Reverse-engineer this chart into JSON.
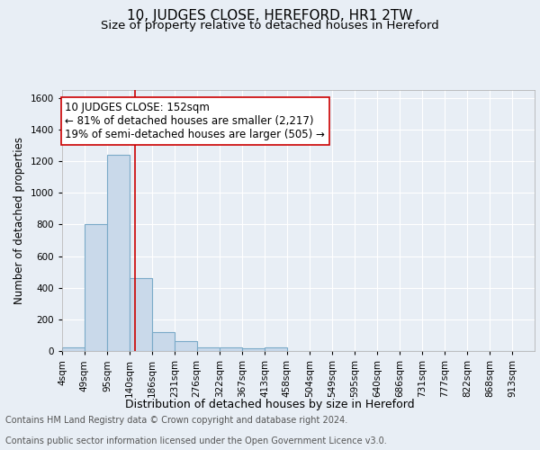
{
  "title": "10, JUDGES CLOSE, HEREFORD, HR1 2TW",
  "subtitle": "Size of property relative to detached houses in Hereford",
  "xlabel": "Distribution of detached houses by size in Hereford",
  "ylabel": "Number of detached properties",
  "footer_line1": "Contains HM Land Registry data © Crown copyright and database right 2024.",
  "footer_line2": "Contains public sector information licensed under the Open Government Licence v3.0.",
  "bin_labels": [
    "4sqm",
    "49sqm",
    "95sqm",
    "140sqm",
    "186sqm",
    "231sqm",
    "276sqm",
    "322sqm",
    "367sqm",
    "413sqm",
    "458sqm",
    "504sqm",
    "549sqm",
    "595sqm",
    "640sqm",
    "686sqm",
    "731sqm",
    "777sqm",
    "822sqm",
    "868sqm",
    "913sqm"
  ],
  "bin_edges": [
    4,
    49,
    95,
    140,
    186,
    231,
    276,
    322,
    367,
    413,
    458,
    504,
    549,
    595,
    640,
    686,
    731,
    777,
    822,
    868,
    913,
    958
  ],
  "bar_heights": [
    25,
    800,
    1240,
    460,
    120,
    60,
    20,
    20,
    15,
    20,
    0,
    0,
    0,
    0,
    0,
    0,
    0,
    0,
    0,
    0,
    0
  ],
  "bar_color": "#c9d9ea",
  "bar_edge_color": "#7aaac8",
  "bar_edge_width": 0.8,
  "background_color": "#e8eef5",
  "plot_background_color": "#e8eef5",
  "grid_color": "#ffffff",
  "vline_x": 152,
  "vline_color": "#cc0000",
  "annotation_text": "10 JUDGES CLOSE: 152sqm\n← 81% of detached houses are smaller (2,217)\n19% of semi-detached houses are larger (505) →",
  "annotation_box_color": "#ffffff",
  "annotation_box_edge_color": "#cc0000",
  "ylim": [
    0,
    1650
  ],
  "yticks": [
    0,
    200,
    400,
    600,
    800,
    1000,
    1200,
    1400,
    1600
  ],
  "title_fontsize": 11,
  "subtitle_fontsize": 9.5,
  "annotation_fontsize": 8.5,
  "ylabel_fontsize": 8.5,
  "xlabel_fontsize": 9,
  "tick_fontsize": 7.5,
  "footer_fontsize": 7
}
